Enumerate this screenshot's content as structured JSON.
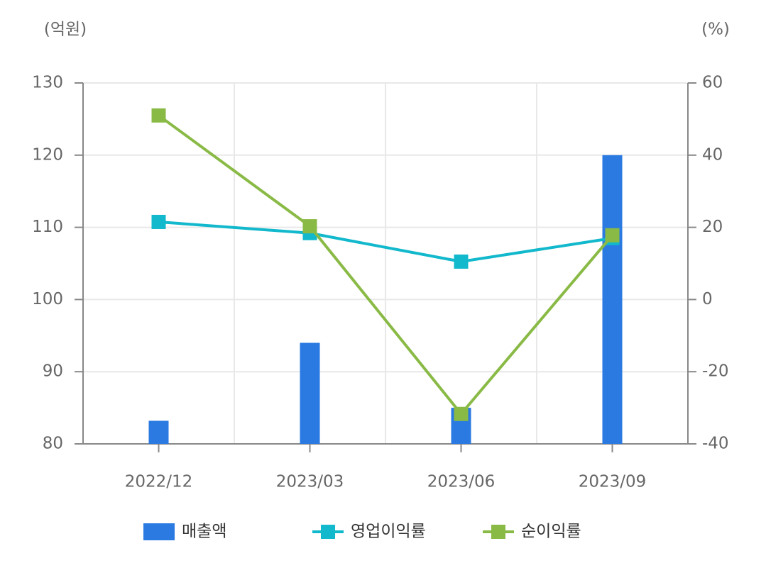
{
  "chart_data": {
    "type": "bar-line",
    "y_unit": "(억원)",
    "y2_unit": "(%)",
    "categories": [
      "2022/12",
      "2023/03",
      "2023/06",
      "2023/09"
    ],
    "series": [
      {
        "name": "매출액",
        "type": "bar",
        "color": "#2a7ae2",
        "values": [
          83.2,
          94.0,
          85.0,
          120.0
        ]
      },
      {
        "name": "영업이익률",
        "type": "line",
        "axis": "y2",
        "color": "#12b8cc",
        "values": [
          21.5,
          18.4,
          10.5,
          17.0
        ]
      },
      {
        "name": "순이익률",
        "type": "line",
        "axis": "y2",
        "color": "#8aba46",
        "values": [
          51.0,
          20.3,
          -31.7,
          17.8
        ]
      }
    ],
    "ylim": [
      80,
      130
    ],
    "yticks": [
      80,
      90,
      100,
      110,
      120,
      130
    ],
    "y2lim": [
      -40,
      60
    ],
    "y2ticks": [
      -40,
      -20,
      0,
      20,
      40,
      60
    ],
    "grid": true,
    "legend": "bottom"
  }
}
